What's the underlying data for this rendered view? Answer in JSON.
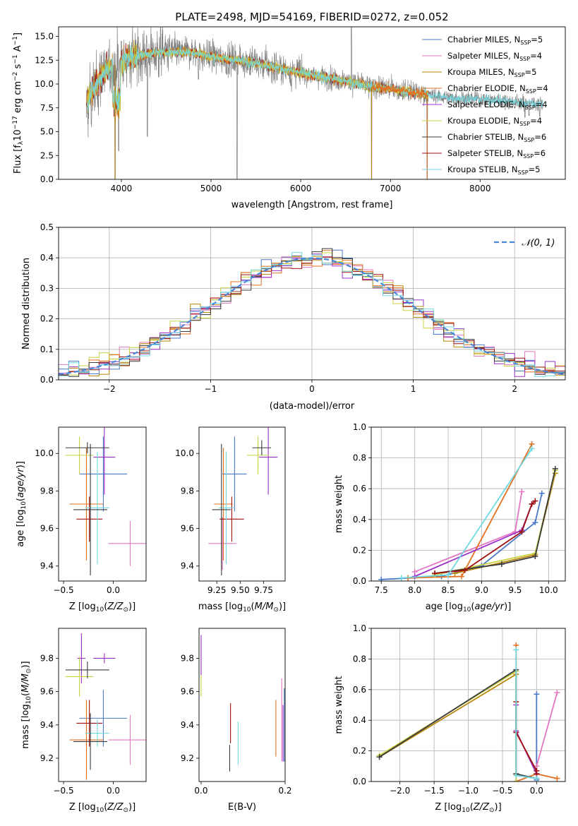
{
  "figure_title": "PLATE=2498, MJD=54169, FIBERID=0272, z=0.052",
  "colors": {
    "chabrier_miles": "#4a78c8",
    "salpeter_miles": "#e377c2",
    "kroupa_miles": "#b8860b",
    "chabrier_elodie": "#e07020",
    "salpeter_elodie": "#9b30c8",
    "kroupa_elodie": "#c8d040",
    "chabrier_stelib": "#3a3a3a",
    "salpeter_stelib": "#a01010",
    "kroupa_stelib": "#70d8e0",
    "spectrum": "#808080",
    "normal": "#4a86d8"
  },
  "chart_data": [
    {
      "id": "spectrum",
      "type": "line",
      "title": "",
      "xlabel": "wavelength [Angstrom, rest frame]",
      "ylabel": "Flux [f_λ10^-17 erg cm^-2 s^-1 A^-1]",
      "xlim": [
        3300,
        8950
      ],
      "ylim": [
        0,
        16
      ],
      "xticks": [
        "4000",
        "5000",
        "6000",
        "7000",
        "8000"
      ],
      "yticks": [
        "0.0",
        "2.5",
        "5.0",
        "7.5",
        "10.0",
        "12.5",
        "15.0"
      ],
      "legend_position": "top-right",
      "legend": [
        {
          "name": "Chabrier MILES, N",
          "sub": "SSP",
          "value": "=5",
          "color_key": "chabrier_miles"
        },
        {
          "name": "Salpeter MILES, N",
          "sub": "SSP",
          "value": "=4",
          "color_key": "salpeter_miles"
        },
        {
          "name": "Kroupa MILES, N",
          "sub": "SSP",
          "value": "=5",
          "color_key": "kroupa_miles"
        },
        {
          "name": "Chabrier ELODIE, N",
          "sub": "SSP",
          "value": "=4",
          "color_key": "chabrier_elodie"
        },
        {
          "name": "Salpeter ELODIE, N",
          "sub": "SSP",
          "value": "=4",
          "color_key": "salpeter_elodie"
        },
        {
          "name": "Kroupa ELODIE, N",
          "sub": "SSP",
          "value": "=4",
          "color_key": "kroupa_elodie"
        },
        {
          "name": "Chabrier STELIB, N",
          "sub": "SSP",
          "value": "=6",
          "color_key": "chabrier_stelib"
        },
        {
          "name": "Salpeter STELIB, N",
          "sub": "SSP",
          "value": "=6",
          "color_key": "salpeter_stelib"
        },
        {
          "name": "Kroupa STELIB, N",
          "sub": "SSP",
          "value": "=5",
          "color_key": "kroupa_stelib"
        }
      ],
      "continuum": [
        [
          3600,
          8.0
        ],
        [
          3700,
          9.5
        ],
        [
          3800,
          11.2
        ],
        [
          3900,
          11.8
        ],
        [
          4000,
          12.3
        ],
        [
          4100,
          12.8
        ],
        [
          4200,
          13.0
        ],
        [
          4400,
          13.3
        ],
        [
          4600,
          13.4
        ],
        [
          4800,
          13.3
        ],
        [
          5000,
          12.9
        ],
        [
          5200,
          12.6
        ],
        [
          5400,
          12.4
        ],
        [
          5600,
          12.0
        ],
        [
          5800,
          11.6
        ],
        [
          6000,
          11.2
        ],
        [
          6200,
          10.8
        ],
        [
          6400,
          10.5
        ],
        [
          6600,
          10.1
        ],
        [
          6800,
          9.7
        ],
        [
          7000,
          9.5
        ],
        [
          7200,
          9.2
        ],
        [
          7400,
          8.9
        ],
        [
          7600,
          8.6
        ],
        [
          7800,
          8.5
        ],
        [
          8000,
          8.4
        ],
        [
          8200,
          8.3
        ],
        [
          8400,
          8.1
        ],
        [
          8600,
          8.0
        ],
        [
          8700,
          7.9
        ]
      ],
      "spikes": [
        [
          3930,
          0.0
        ],
        [
          3970,
          3.0
        ],
        [
          4000,
          14.5
        ],
        [
          4290,
          4.5
        ],
        [
          4860,
          10.5
        ],
        [
          5175,
          11.0
        ],
        [
          5290,
          0.0
        ],
        [
          5890,
          9.8
        ],
        [
          6565,
          16.0
        ],
        [
          6790,
          0.0
        ],
        [
          7410,
          0.0
        ],
        [
          8500,
          6.5
        ],
        [
          8545,
          6.7
        ],
        [
          8665,
          6.6
        ]
      ]
    },
    {
      "id": "residuals",
      "type": "histogram",
      "xlabel": "(data-model)/error",
      "ylabel": "Normed distribution",
      "xlim": [
        -2.5,
        2.5
      ],
      "ylim": [
        0,
        0.5
      ],
      "grid": true,
      "xticks": [
        "−2",
        "−1",
        "0",
        "1",
        "2"
      ],
      "yticks": [
        "0.0",
        "0.1",
        "0.2",
        "0.3",
        "0.4",
        "0.5"
      ],
      "legend_label": "𝒩(0, 1)",
      "legend_position": "top-right",
      "bin_width": 0.1
    },
    {
      "id": "age_vs_Z",
      "type": "scatter",
      "xlabel": "Z [log10(Z/Z⊙)]",
      "ylabel": "age [log10(age/yr)]",
      "xlim": [
        -0.55,
        0.33
      ],
      "ylim": [
        9.32,
        10.14
      ],
      "xticks": [
        "−0.5",
        "0.0"
      ],
      "yticks": [
        "9.4",
        "9.6",
        "9.8",
        "10.0"
      ],
      "points": [
        {
          "color_key": "chabrier_miles",
          "x": -0.1,
          "xerr": 0.24,
          "y": 9.89,
          "yerr": 0.2
        },
        {
          "color_key": "salpeter_miles",
          "x": 0.17,
          "xerr": 0.22,
          "y": 9.52,
          "yerr": 0.12
        },
        {
          "color_key": "chabrier_elodie",
          "x": -0.27,
          "xerr": 0.17,
          "y": 9.73,
          "yerr": 0.3
        },
        {
          "color_key": "salpeter_elodie",
          "x": -0.09,
          "xerr": 0.11,
          "y": 9.98,
          "yerr": 0.2
        },
        {
          "color_key": "kroupa_elodie",
          "x": -0.34,
          "xerr": 0.14,
          "y": 9.99,
          "yerr": 0.1
        },
        {
          "color_key": "chabrier_stelib",
          "x": -0.26,
          "xerr": 0.22,
          "y": 10.03,
          "yerr": 0.03
        },
        {
          "color_key": "salpeter_stelib",
          "x": -0.24,
          "xerr": 0.13,
          "y": 9.65,
          "yerr": 0.12
        },
        {
          "color_key": "kroupa_stelib",
          "x": -0.16,
          "xerr": 0.12,
          "y": 9.71,
          "yerr": 0.3
        },
        {
          "color_key": "chabrier_stelib",
          "x": -0.23,
          "xerr": 0.17,
          "y": 9.7,
          "yerr": 0.35
        }
      ]
    },
    {
      "id": "age_vs_mass",
      "type": "scatter",
      "xlabel": "mass [log10(M/M⊙)]",
      "ylabel": "",
      "xlim": [
        9.06,
        9.98
      ],
      "ylim": [
        9.32,
        10.14
      ],
      "xticks": [
        "9.25",
        "9.50",
        "9.75"
      ],
      "yticks": [
        "9.4",
        "9.6",
        "9.8",
        "10.0"
      ],
      "points": [
        {
          "color_key": "chabrier_miles",
          "x": 9.44,
          "xerr": 0.13,
          "y": 9.89,
          "yerr": 0.2
        },
        {
          "color_key": "salpeter_miles",
          "x": 9.31,
          "xerr": 0.15,
          "y": 9.52,
          "yerr": 0.14
        },
        {
          "color_key": "chabrier_elodie",
          "x": 9.32,
          "xerr": 0.1,
          "y": 9.73,
          "yerr": 0.3
        },
        {
          "color_key": "salpeter_elodie",
          "x": 9.8,
          "xerr": 0.1,
          "y": 9.98,
          "yerr": 0.2
        },
        {
          "color_key": "kroupa_elodie",
          "x": 9.69,
          "xerr": 0.12,
          "y": 9.99,
          "yerr": 0.1
        },
        {
          "color_key": "chabrier_stelib",
          "x": 9.73,
          "xerr": 0.1,
          "y": 10.03,
          "yerr": 0.04
        },
        {
          "color_key": "salpeter_stelib",
          "x": 9.41,
          "xerr": 0.13,
          "y": 9.65,
          "yerr": 0.12
        },
        {
          "color_key": "kroupa_stelib",
          "x": 9.35,
          "xerr": 0.08,
          "y": 9.71,
          "yerr": 0.3
        },
        {
          "color_key": "chabrier_stelib",
          "x": 9.3,
          "xerr": 0.1,
          "y": 9.7,
          "yerr": 0.35
        }
      ]
    },
    {
      "id": "mass_vs_Z",
      "type": "scatter",
      "xlabel": "Z [log10(Z/Z⊙)]",
      "ylabel": "mass [log10(M/M⊙)]",
      "xlim": [
        -0.55,
        0.33
      ],
      "ylim": [
        9.06,
        9.98
      ],
      "xticks": [
        "−0.5",
        "0.0"
      ],
      "yticks": [
        "9.2",
        "9.4",
        "9.6",
        "9.8"
      ],
      "points": [
        {
          "color_key": "chabrier_miles",
          "x": -0.1,
          "xerr": 0.24,
          "y": 9.44,
          "yerr": 0.17
        },
        {
          "color_key": "salpeter_miles",
          "x": 0.17,
          "xerr": 0.22,
          "y": 9.31,
          "yerr": 0.15
        },
        {
          "color_key": "chabrier_elodie",
          "x": -0.27,
          "xerr": 0.17,
          "y": 9.31,
          "yerr": 0.24
        },
        {
          "color_key": "salpeter_elodie",
          "x": -0.09,
          "xerr": 0.11,
          "y": 9.8,
          "yerr": 0.03
        },
        {
          "color_key": "salpeter_elodie",
          "x": -0.32,
          "xerr": 0.04,
          "y": 9.8,
          "yerr": 0.15
        },
        {
          "color_key": "kroupa_elodie",
          "x": -0.34,
          "xerr": 0.14,
          "y": 9.69,
          "yerr": 0.12
        },
        {
          "color_key": "chabrier_stelib",
          "x": -0.26,
          "xerr": 0.22,
          "y": 9.73,
          "yerr": 0.05
        },
        {
          "color_key": "salpeter_stelib",
          "x": -0.24,
          "xerr": 0.13,
          "y": 9.41,
          "yerr": 0.14
        },
        {
          "color_key": "kroupa_stelib",
          "x": -0.16,
          "xerr": 0.12,
          "y": 9.35,
          "yerr": 0.08
        },
        {
          "color_key": "chabrier_stelib",
          "x": -0.23,
          "xerr": 0.17,
          "y": 9.3,
          "yerr": 0.17
        }
      ]
    },
    {
      "id": "mass_vs_EBV",
      "type": "scatter",
      "xlabel": "E(B-V)",
      "ylabel": "",
      "xlim": [
        -0.005,
        0.2
      ],
      "ylim": [
        9.06,
        9.98
      ],
      "xticks": [
        "0.0",
        "0.2"
      ],
      "yticks": [
        "9.2",
        "9.4",
        "9.6",
        "9.8"
      ],
      "points": [
        {
          "color_key": "kroupa_elodie",
          "x": 0.0,
          "y": 9.69,
          "yerr": 0.12
        },
        {
          "color_key": "salpeter_elodie",
          "x": 0.0,
          "y": 9.82,
          "yerr": 0.12
        },
        {
          "color_key": "chabrier_stelib",
          "x": 0.068,
          "y": 9.2,
          "yerr": 0.08
        },
        {
          "color_key": "salpeter_stelib",
          "x": 0.07,
          "y": 9.41,
          "yerr": 0.12
        },
        {
          "color_key": "kroupa_stelib",
          "x": 0.088,
          "y": 9.29,
          "yerr": 0.13
        },
        {
          "color_key": "chabrier_elodie",
          "x": 0.178,
          "y": 9.38,
          "yerr": 0.17
        },
        {
          "color_key": "salpeter_miles",
          "x": 0.192,
          "y": 9.43,
          "yerr": 0.25
        },
        {
          "color_key": "salpeter_elodie",
          "x": 0.195,
          "y": 9.35,
          "yerr": 0.17
        },
        {
          "color_key": "chabrier_miles",
          "x": 0.198,
          "y": 9.4,
          "yerr": 0.22
        }
      ]
    },
    {
      "id": "massweight_vs_age",
      "type": "line",
      "xlabel": "age [log10(age/yr)]",
      "ylabel": "mass weight",
      "xlim": [
        7.35,
        10.25
      ],
      "ylim": [
        0,
        1
      ],
      "grid": true,
      "xticks": [
        "7.5",
        "8.0",
        "8.5",
        "9.0",
        "9.5",
        "10.0"
      ],
      "yticks": [
        "0.0",
        "0.2",
        "0.4",
        "0.6",
        "0.8",
        "1.0"
      ],
      "series": [
        {
          "color_key": "chabrier_miles",
          "x": [
            7.5,
            8.4,
            9.0,
            9.8,
            9.9
          ],
          "y": [
            0.01,
            0.03,
            0.1,
            0.38,
            0.57
          ]
        },
        {
          "color_key": "salpeter_miles",
          "x": [
            8.0,
            9.5,
            9.6
          ],
          "y": [
            0.06,
            0.32,
            0.58
          ]
        },
        {
          "color_key": "kroupa_miles",
          "x": [
            8.6,
            9.8,
            10.1
          ],
          "y": [
            0.05,
            0.17,
            0.7
          ]
        },
        {
          "color_key": "chabrier_elodie",
          "x": [
            7.9,
            8.7,
            9.75
          ],
          "y": [
            0.02,
            0.03,
            0.89
          ]
        },
        {
          "color_key": "salpeter_elodie",
          "x": [
            8.0,
            9.6,
            9.75
          ],
          "y": [
            0.03,
            0.33,
            0.5
          ]
        },
        {
          "color_key": "kroupa_elodie",
          "x": [
            8.3,
            9.8,
            10.1
          ],
          "y": [
            0.04,
            0.18,
            0.72
          ]
        },
        {
          "color_key": "chabrier_stelib",
          "x": [
            8.3,
            9.3,
            9.8,
            10.1
          ],
          "y": [
            0.05,
            0.11,
            0.16,
            0.73
          ]
        },
        {
          "color_key": "salpeter_stelib",
          "x": [
            8.3,
            8.75,
            9.6,
            9.75,
            9.8
          ],
          "y": [
            0.05,
            0.07,
            0.32,
            0.5,
            0.52
          ]
        },
        {
          "color_key": "kroupa_stelib",
          "x": [
            7.8,
            8.5,
            9.75
          ],
          "y": [
            0.02,
            0.04,
            0.86
          ]
        }
      ]
    },
    {
      "id": "massweight_vs_Z",
      "type": "line",
      "xlabel": "Z [log10(Z/Z⊙)]",
      "ylabel": "mass weight",
      "xlim": [
        -2.42,
        0.42
      ],
      "ylim": [
        0,
        1
      ],
      "grid": true,
      "xticks": [
        "−2.0",
        "−1.5",
        "−1.0",
        "−0.5",
        "0.0"
      ],
      "yticks": [
        "0.0",
        "0.2",
        "0.4",
        "0.6",
        "0.8",
        "1.0"
      ],
      "series": [
        {
          "color_key": "chabrier_miles",
          "x": [
            0.0,
            0.0,
            0.0
          ],
          "y": [
            0.57,
            0.05,
            0.01
          ]
        },
        {
          "color_key": "salpeter_miles",
          "x": [
            0.3,
            0.0,
            0.0
          ],
          "y": [
            0.58,
            0.1,
            0.02
          ]
        },
        {
          "color_key": "kroupa_miles",
          "x": [
            -2.3,
            -0.3,
            -0.3
          ],
          "y": [
            0.16,
            0.7,
            0.05
          ]
        },
        {
          "color_key": "chabrier_elodie",
          "x": [
            -0.3,
            -0.3,
            0.0,
            0.3
          ],
          "y": [
            0.89,
            0.0,
            0.05,
            0.02
          ]
        },
        {
          "color_key": "salpeter_elodie",
          "x": [
            -0.3,
            -0.3,
            0.0
          ],
          "y": [
            0.5,
            0.33,
            0.05
          ]
        },
        {
          "color_key": "kroupa_elodie",
          "x": [
            -2.3,
            -0.3,
            -0.3
          ],
          "y": [
            0.17,
            0.72,
            0.0
          ]
        },
        {
          "color_key": "chabrier_stelib",
          "x": [
            -2.3,
            -0.3,
            -0.3,
            0.0
          ],
          "y": [
            0.16,
            0.73,
            0.05,
            0.02
          ]
        },
        {
          "color_key": "salpeter_stelib",
          "x": [
            -0.3,
            -0.3,
            0.0,
            0.0
          ],
          "y": [
            0.52,
            0.32,
            0.07,
            0.05
          ]
        },
        {
          "color_key": "kroupa_stelib",
          "x": [
            -0.3,
            -0.3,
            0.0
          ],
          "y": [
            0.86,
            0.04,
            0.02
          ]
        }
      ]
    }
  ]
}
